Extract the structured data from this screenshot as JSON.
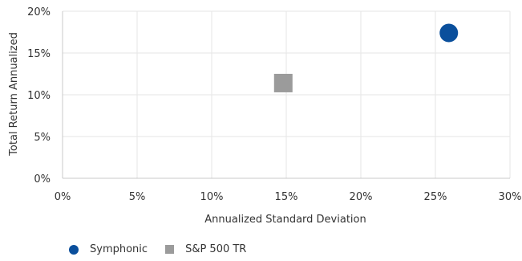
{
  "chart_data": {
    "type": "scatter",
    "xlabel": "Annualized Standard Deviation",
    "ylabel": "Total Return Annualized",
    "xlim": [
      0,
      30
    ],
    "ylim": [
      0,
      20
    ],
    "x_ticks": [
      "0%",
      "5%",
      "10%",
      "15%",
      "20%",
      "25%",
      "30%"
    ],
    "y_ticks": [
      "0%",
      "5%",
      "10%",
      "15%",
      "20%"
    ],
    "x_tick_values": [
      0,
      5,
      10,
      15,
      20,
      25,
      30
    ],
    "y_tick_values": [
      0,
      5,
      10,
      15,
      20
    ],
    "grid": true,
    "legend_position": "bottom-left",
    "series": [
      {
        "name": "Symphonic",
        "marker": "circle",
        "color": "#0a4f9c",
        "x": [
          25.9
        ],
        "y": [
          17.4
        ]
      },
      {
        "name": "S&P 500 TR",
        "marker": "square",
        "color": "#9b9b9b",
        "x": [
          14.8
        ],
        "y": [
          11.4
        ]
      }
    ]
  }
}
